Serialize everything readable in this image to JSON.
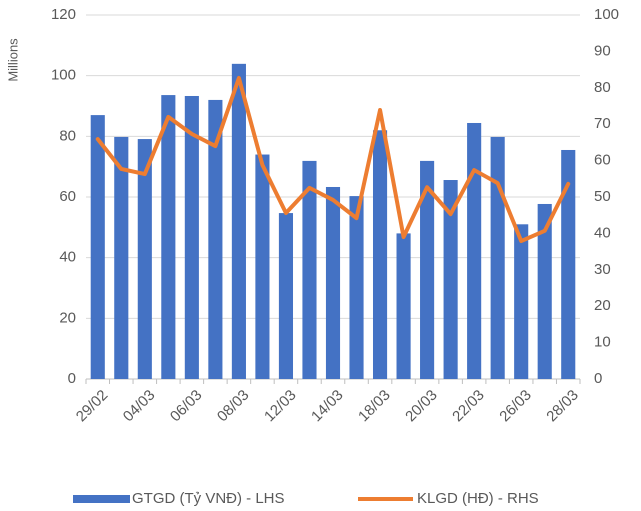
{
  "chart_data": {
    "type": "bar-line",
    "y_label": "Millions",
    "categories": [
      "29/02",
      null,
      "04/03",
      null,
      "06/03",
      null,
      "08/03",
      null,
      "12/03",
      null,
      "14/03",
      null,
      "18/03",
      null,
      "20/03",
      null,
      "22/03",
      null,
      "26/03",
      null,
      "28/03"
    ],
    "series": [
      {
        "name": "GTGD (Tỷ VNĐ) - LHS",
        "type": "bar",
        "color": "#4472c4",
        "values": [
          87,
          79.8,
          79.1,
          93.6,
          93.3,
          92,
          103.9,
          74,
          54.7,
          71.9,
          63.3,
          60.3,
          82,
          48,
          71.9,
          65.6,
          84.4,
          79.8,
          51,
          57.7,
          75.5
        ]
      },
      {
        "name": "KLGD (HĐ) - RHS",
        "type": "line",
        "axis": "y2",
        "color": "#ed7d31",
        "values": [
          65.9,
          57.7,
          56.3,
          72,
          67.3,
          64,
          82.7,
          58.8,
          45.6,
          52.5,
          49.2,
          44.2,
          73.9,
          39,
          52.7,
          45.3,
          57.4,
          53.8,
          37.9,
          40.7,
          53.6
        ]
      }
    ],
    "ylim": [
      0,
      120
    ],
    "yticks": [
      0,
      20,
      40,
      60,
      80,
      100,
      120
    ],
    "y2lim": [
      0,
      100
    ],
    "y2ticks": [
      0,
      10,
      20,
      30,
      40,
      50,
      60,
      70,
      80,
      90,
      100
    ],
    "grid": true,
    "legend": "bottom"
  }
}
